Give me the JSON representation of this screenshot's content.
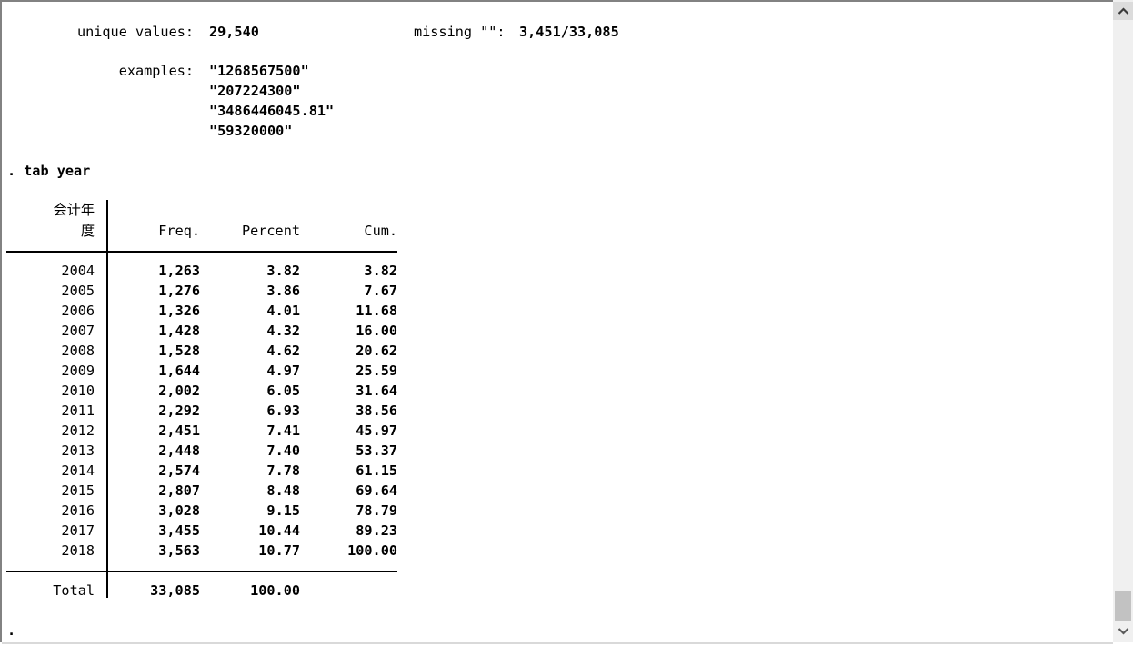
{
  "colors": {
    "text": "#000000",
    "window_border": "#828282",
    "table_rule": "#000000",
    "scroll_track": "#f0f0f0",
    "scroll_thumb": "#c2c2c2",
    "scroll_button": "#dcdcdc",
    "bottom_edge": "#d9d9d9"
  },
  "summary": {
    "unique_label": "unique values:",
    "unique_value": "29,540",
    "missing_label": "missing \"\":",
    "missing_value": "3,451/33,085",
    "examples_label": "examples:",
    "examples": [
      "\"1268567500\"",
      "\"207224300\"",
      "\"3486446045.81\"",
      "\"59320000\""
    ]
  },
  "command": {
    "prompt": ".",
    "text": "tab year"
  },
  "table": {
    "header_line1": "会计年",
    "header_line2": "度",
    "columns": [
      "Freq.",
      "Percent",
      "Cum."
    ],
    "rows": [
      {
        "year": "2004",
        "freq": "1,263",
        "percent": "3.82",
        "cum": "3.82"
      },
      {
        "year": "2005",
        "freq": "1,276",
        "percent": "3.86",
        "cum": "7.67"
      },
      {
        "year": "2006",
        "freq": "1,326",
        "percent": "4.01",
        "cum": "11.68"
      },
      {
        "year": "2007",
        "freq": "1,428",
        "percent": "4.32",
        "cum": "16.00"
      },
      {
        "year": "2008",
        "freq": "1,528",
        "percent": "4.62",
        "cum": "20.62"
      },
      {
        "year": "2009",
        "freq": "1,644",
        "percent": "4.97",
        "cum": "25.59"
      },
      {
        "year": "2010",
        "freq": "2,002",
        "percent": "6.05",
        "cum": "31.64"
      },
      {
        "year": "2011",
        "freq": "2,292",
        "percent": "6.93",
        "cum": "38.56"
      },
      {
        "year": "2012",
        "freq": "2,451",
        "percent": "7.41",
        "cum": "45.97"
      },
      {
        "year": "2013",
        "freq": "2,448",
        "percent": "7.40",
        "cum": "53.37"
      },
      {
        "year": "2014",
        "freq": "2,574",
        "percent": "7.78",
        "cum": "61.15"
      },
      {
        "year": "2015",
        "freq": "2,807",
        "percent": "8.48",
        "cum": "69.64"
      },
      {
        "year": "2016",
        "freq": "3,028",
        "percent": "9.15",
        "cum": "78.79"
      },
      {
        "year": "2017",
        "freq": "3,455",
        "percent": "10.44",
        "cum": "89.23"
      },
      {
        "year": "2018",
        "freq": "3,563",
        "percent": "10.77",
        "cum": "100.00"
      }
    ],
    "total": {
      "label": "Total",
      "freq": "33,085",
      "percent": "100.00",
      "cum": ""
    }
  },
  "trailing_prompt": ".",
  "scrollbar": {
    "up_icon": "chevron-up",
    "down_icon": "chevron-down"
  }
}
